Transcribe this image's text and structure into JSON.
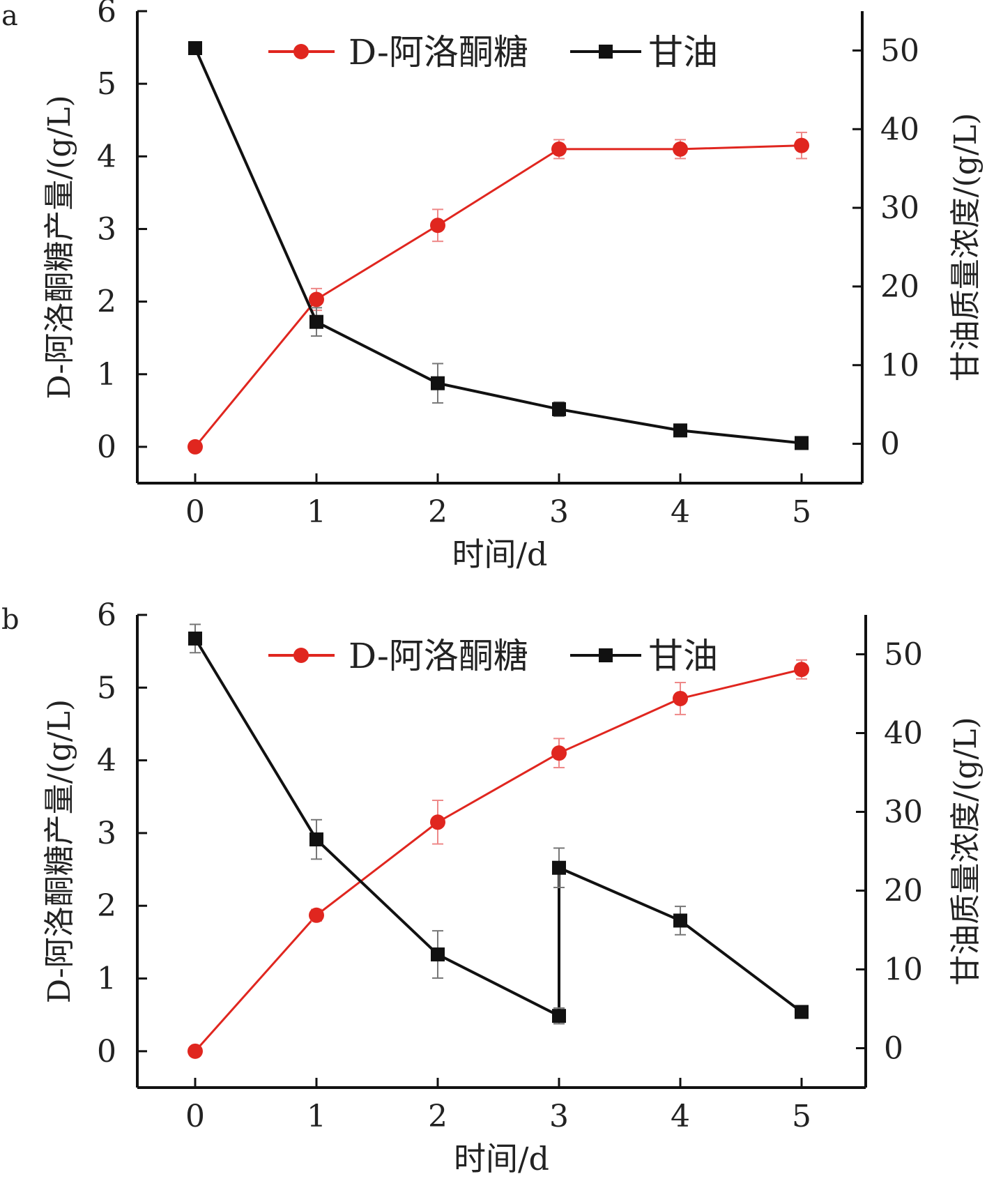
{
  "chart_data": [
    {
      "panel_label": "a",
      "type": "line",
      "xlabel": "时间/d",
      "ylabel": "D-阿洛酮糖产量/(g/L)",
      "ylabel_right": "甘油质量浓度/(g/L)",
      "x_ticks": [
        "0",
        "1",
        "2",
        "3",
        "4",
        "5"
      ],
      "y_ticks": [
        "0",
        "1",
        "2",
        "3",
        "4",
        "5",
        "6"
      ],
      "y_right_ticks": [
        "0",
        "10",
        "20",
        "30",
        "40",
        "50"
      ],
      "xlim": [
        -0.48,
        5.5
      ],
      "ylim": [
        -0.5,
        6
      ],
      "ylim_right": [
        -5,
        55
      ],
      "legend_position": "top-center",
      "series": [
        {
          "name": "D-阿洛酮糖",
          "axis": "left",
          "color": "#e0261f",
          "marker": "circle",
          "x": [
            0,
            1,
            2,
            3,
            4,
            5
          ],
          "y": [
            0,
            2.03,
            3.05,
            4.1,
            4.1,
            4.15
          ],
          "err": [
            0,
            0.15,
            0.22,
            0.13,
            0.13,
            0.18
          ]
        },
        {
          "name": "甘油",
          "axis": "right",
          "color": "#111111",
          "marker": "square",
          "x": [
            0,
            1,
            2,
            3,
            4,
            5
          ],
          "y": [
            50.3,
            15.5,
            7.7,
            4.4,
            1.7,
            0.1
          ],
          "err": [
            0,
            1.8,
            2.5,
            0.9,
            0.4,
            0.3
          ]
        }
      ]
    },
    {
      "panel_label": "b",
      "type": "line",
      "xlabel": "时间/d",
      "ylabel": "D-阿洛酮糖产量/(g/L)",
      "ylabel_right": "甘油质量浓度/(g/L)",
      "x_ticks": [
        "0",
        "1",
        "2",
        "3",
        "4",
        "5"
      ],
      "y_ticks": [
        "0",
        "1",
        "2",
        "3",
        "4",
        "5",
        "6"
      ],
      "y_right_ticks": [
        "0",
        "10",
        "20",
        "30",
        "40",
        "50"
      ],
      "xlim": [
        -0.48,
        5.5
      ],
      "ylim": [
        -0.5,
        6
      ],
      "ylim_right": [
        -5,
        55
      ],
      "legend_position": "top-center",
      "series": [
        {
          "name": "D-阿洛酮糖",
          "axis": "left",
          "color": "#e0261f",
          "marker": "circle",
          "x": [
            0,
            1,
            2,
            3,
            4,
            5
          ],
          "y": [
            0,
            1.87,
            3.15,
            4.1,
            4.85,
            5.25
          ],
          "err": [
            0,
            0.08,
            0.3,
            0.2,
            0.22,
            0.13
          ]
        },
        {
          "name": "甘油",
          "axis": "right",
          "color": "#111111",
          "marker": "square",
          "x": [
            0,
            1,
            2,
            3,
            3,
            4,
            5
          ],
          "y": [
            52.0,
            26.5,
            11.9,
            4.1,
            22.9,
            16.2,
            4.6
          ],
          "err": [
            1.8,
            2.5,
            3.0,
            1.0,
            2.5,
            1.8,
            0.4
          ]
        }
      ]
    }
  ]
}
